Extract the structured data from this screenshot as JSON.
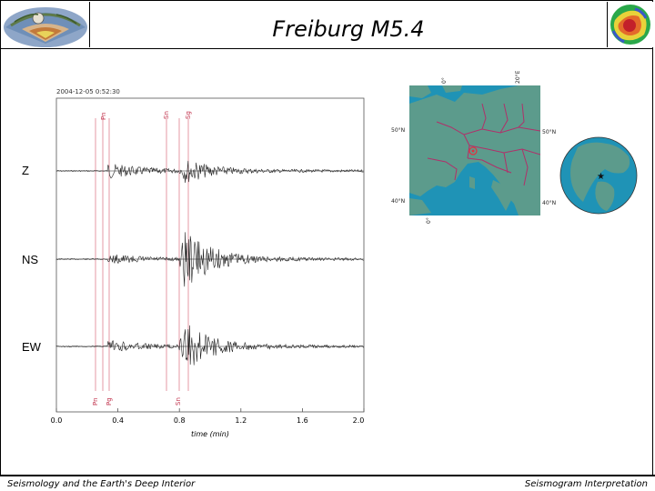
{
  "slide": {
    "title": "Freiburg M5.4",
    "footer_left": "Seismology and the Earth's Deep Interior",
    "footer_right": "Seismogram Interpretation"
  },
  "seismogram": {
    "timestamp": "2004-12-05 0:52:30",
    "components": [
      "Z",
      "NS",
      "EW"
    ],
    "phases_top": [
      "Pn",
      "Sn",
      "Sg"
    ],
    "phases_bottom": [
      "Pn",
      "Pg",
      "Sn"
    ],
    "x_ticks": [
      "0.0",
      "0.4",
      "0.8",
      "1.2",
      "1.6",
      "2.0"
    ],
    "x_label": "time (min)"
  },
  "map": {
    "lon_top_left": "0°",
    "lon_top_right": "20°E",
    "lat_upper_left": "50°N",
    "lat_upper_right": "50°N",
    "lat_lower_left": "40°N",
    "lat_lower_right": "40°N",
    "lon_bottom_left": "0°",
    "colors": {
      "water": "#1f93b6",
      "land": "#5c9b8c",
      "borders": "#b0306a"
    }
  }
}
